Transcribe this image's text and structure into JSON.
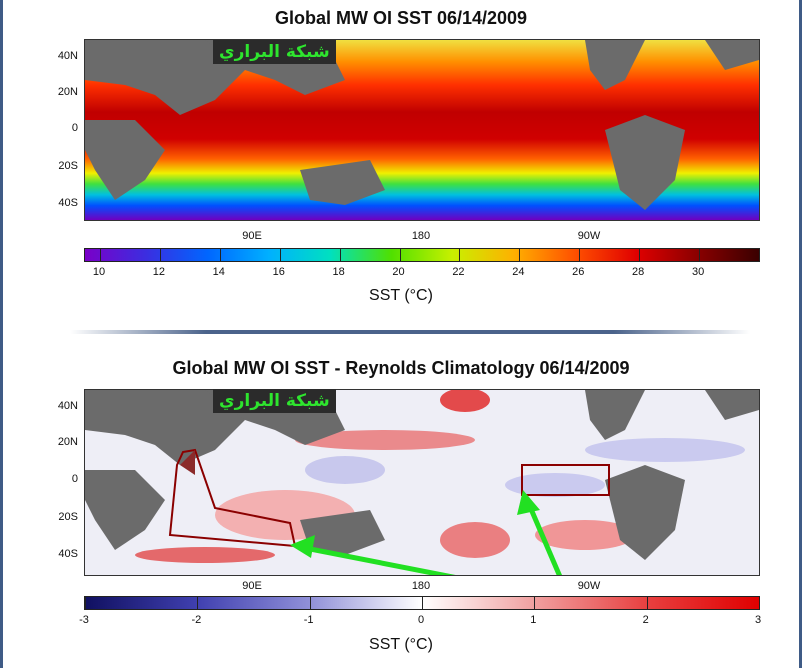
{
  "panel1": {
    "title": "Global MW OI SST 06/14/2009",
    "lat_labels": [
      "40N",
      "20N",
      "0",
      "20S",
      "40S"
    ],
    "lon_labels": [
      "90E",
      "180",
      "90W"
    ],
    "watermark": "شبكة البراري",
    "colorbar": {
      "ticks": [
        "10",
        "12",
        "14",
        "16",
        "18",
        "20",
        "22",
        "24",
        "26",
        "28",
        "30"
      ],
      "colors": [
        "#7a00c8",
        "#3b2ee0",
        "#0066ff",
        "#00b0ff",
        "#00e0c0",
        "#50e000",
        "#c8f000",
        "#ffb000",
        "#ff5000",
        "#e00000",
        "#8a0000",
        "#3a0000"
      ]
    },
    "unit": "SST (°C)"
  },
  "panel2": {
    "title": "Global MW OI SST  - Reynolds Climatology 06/14/2009",
    "lat_labels": [
      "40N",
      "20N",
      "0",
      "20S",
      "40S"
    ],
    "lon_labels": [
      "90E",
      "180",
      "90W"
    ],
    "watermark": "شبكة البراري",
    "colorbar": {
      "ticks": [
        "-3",
        "-2",
        "-1",
        "0",
        "1",
        "2",
        "3"
      ],
      "colors": [
        "#101060",
        "#4040b0",
        "#9090d8",
        "#ffffff",
        "#f0a0a0",
        "#e84040",
        "#e00000"
      ]
    },
    "unit": "SST (°C)"
  }
}
